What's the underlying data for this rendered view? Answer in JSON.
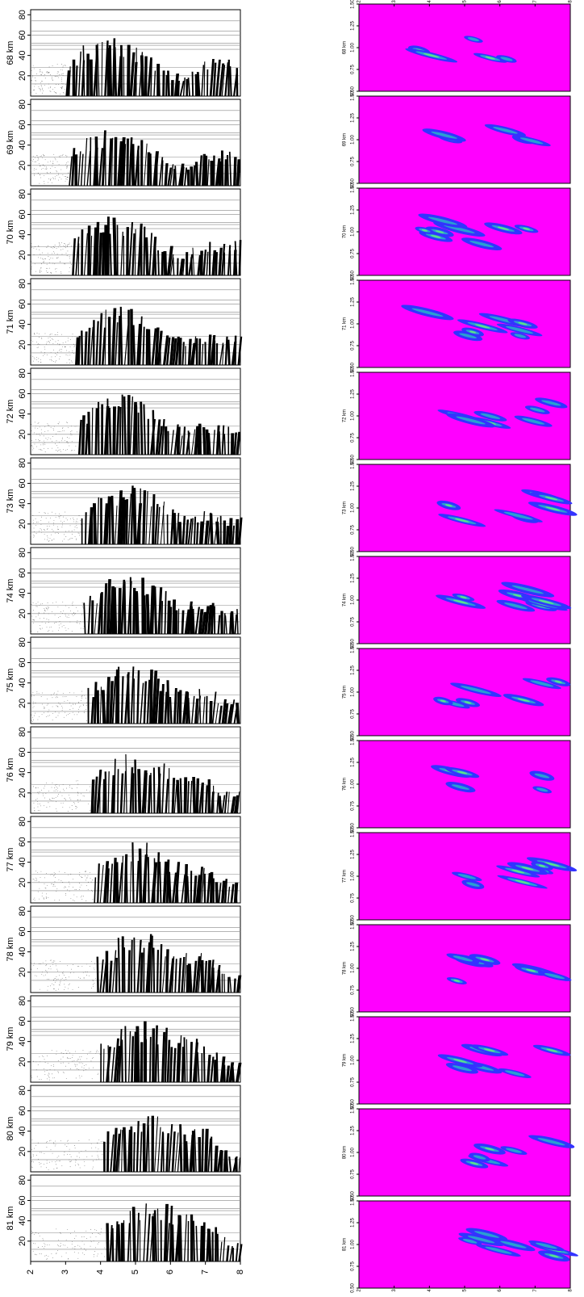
{
  "chart_data": {
    "type": "panel-grid",
    "panels": [
      "68 km",
      "69 km",
      "70 km",
      "71 km",
      "72 km",
      "73 km",
      "74 km",
      "75 km",
      "76 km",
      "77 km",
      "78 km",
      "79 km",
      "80 km",
      "81 km"
    ],
    "left": {
      "xlim": [
        2,
        8
      ],
      "xticks": [
        2,
        3,
        4,
        5,
        6,
        7,
        8
      ],
      "ylim": [
        0,
        85
      ],
      "yticks": [
        20,
        40,
        60,
        80
      ]
    },
    "right": {
      "xlim": [
        2,
        8
      ],
      "xticks": [
        2,
        3,
        4,
        5,
        6,
        7,
        8
      ],
      "ylim": [
        0.5,
        1.5
      ],
      "yticks": [
        {
          "value": 0.5,
          "label": "0.50"
        },
        0.75,
        {
          "value": 1,
          "label": "1.00"
        },
        1.25,
        {
          "value": 1.5,
          "label": "1.50"
        }
      ]
    }
  }
}
